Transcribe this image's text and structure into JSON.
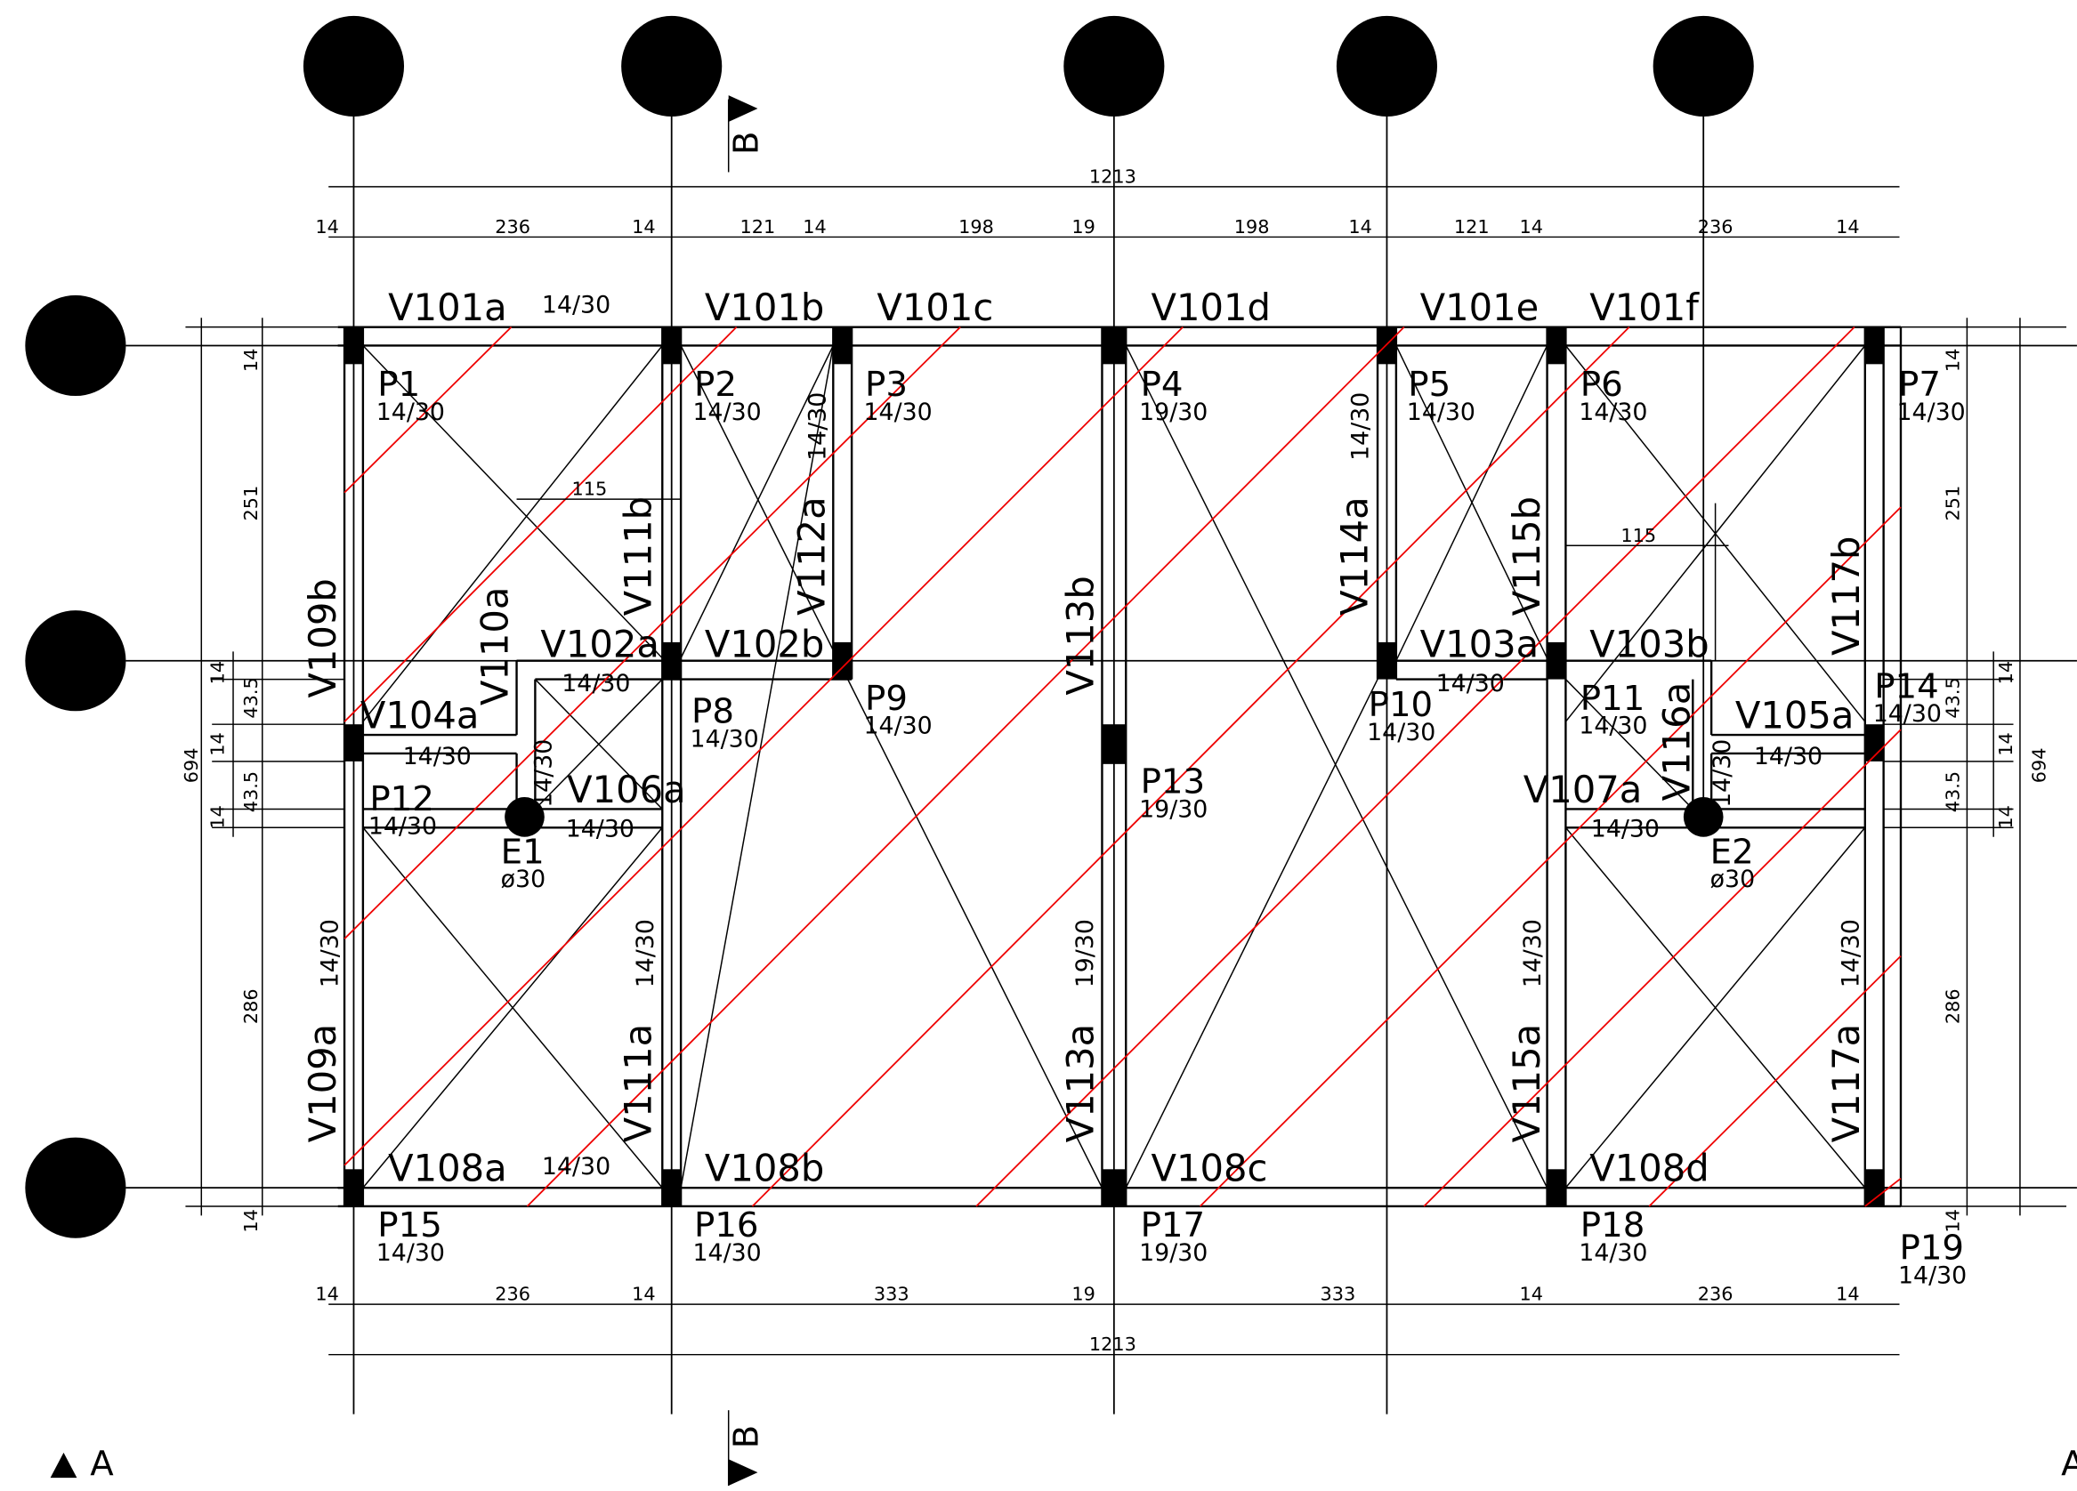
{
  "beams": [
    "V101a",
    "V101b",
    "V101c",
    "V101d",
    "V101e",
    "V101f",
    "V102a",
    "V102b",
    "V103a",
    "V103b",
    "V104a",
    "V105a",
    "V106a",
    "V107a",
    "V108a",
    "V108b",
    "V108c",
    "V108d",
    "V109b",
    "V109a",
    "V110a",
    "V111b",
    "V111a",
    "V112a",
    "V113b",
    "V113a",
    "V114a",
    "V115b",
    "V115a",
    "V116a",
    "V117b",
    "V117a"
  ],
  "beam_sections": [
    "14/30",
    "14/30",
    "14/30",
    "14/30",
    "14/30",
    "14/30",
    "14/30",
    "14/30",
    "14/30",
    "14/30",
    "14/30",
    "14/30",
    "14/30",
    "14/30",
    "19/30",
    "14/30",
    "14/30"
  ],
  "pillars": [
    {
      "label": "P1",
      "section": "14/30"
    },
    {
      "label": "P2",
      "section": "14/30"
    },
    {
      "label": "P3",
      "section": "14/30"
    },
    {
      "label": "P4",
      "section": "19/30"
    },
    {
      "label": "P5",
      "section": "14/30"
    },
    {
      "label": "P6",
      "section": "14/30"
    },
    {
      "label": "P7",
      "section": "14/30"
    },
    {
      "label": "P8",
      "section": "14/30"
    },
    {
      "label": "P9",
      "section": "14/30"
    },
    {
      "label": "P10",
      "section": "14/30"
    },
    {
      "label": "P11",
      "section": "14/30"
    },
    {
      "label": "P12",
      "section": "14/30"
    },
    {
      "label": "P13",
      "section": "19/30"
    },
    {
      "label": "P14",
      "section": "14/30"
    },
    {
      "label": "P15",
      "section": "14/30"
    },
    {
      "label": "P16",
      "section": "14/30"
    },
    {
      "label": "P17",
      "section": "19/30"
    },
    {
      "label": "P18",
      "section": "14/30"
    },
    {
      "label": "P19",
      "section": "14/30"
    }
  ],
  "columns": [
    {
      "label": "E1",
      "section": "ø30"
    },
    {
      "label": "E2",
      "section": "ø30"
    }
  ],
  "dimensions": {
    "top": [
      "1213",
      "14",
      "236",
      "14",
      "121",
      "14",
      "198",
      "19",
      "198",
      "14",
      "121",
      "14",
      "236",
      "14"
    ],
    "bottom": [
      "14",
      "236",
      "14",
      "333",
      "19",
      "333",
      "14",
      "236",
      "14",
      "1213"
    ],
    "left": [
      "14",
      "251",
      "14",
      "43.5",
      "14",
      "43.5",
      "14",
      "286",
      "14",
      "694"
    ],
    "right": [
      "14",
      "251",
      "14",
      "43.5",
      "14",
      "43.5",
      "14",
      "286",
      "14",
      "694"
    ],
    "spans": [
      "115",
      "115"
    ]
  },
  "section_marks": [
    "B",
    "B",
    "A",
    "A"
  ]
}
